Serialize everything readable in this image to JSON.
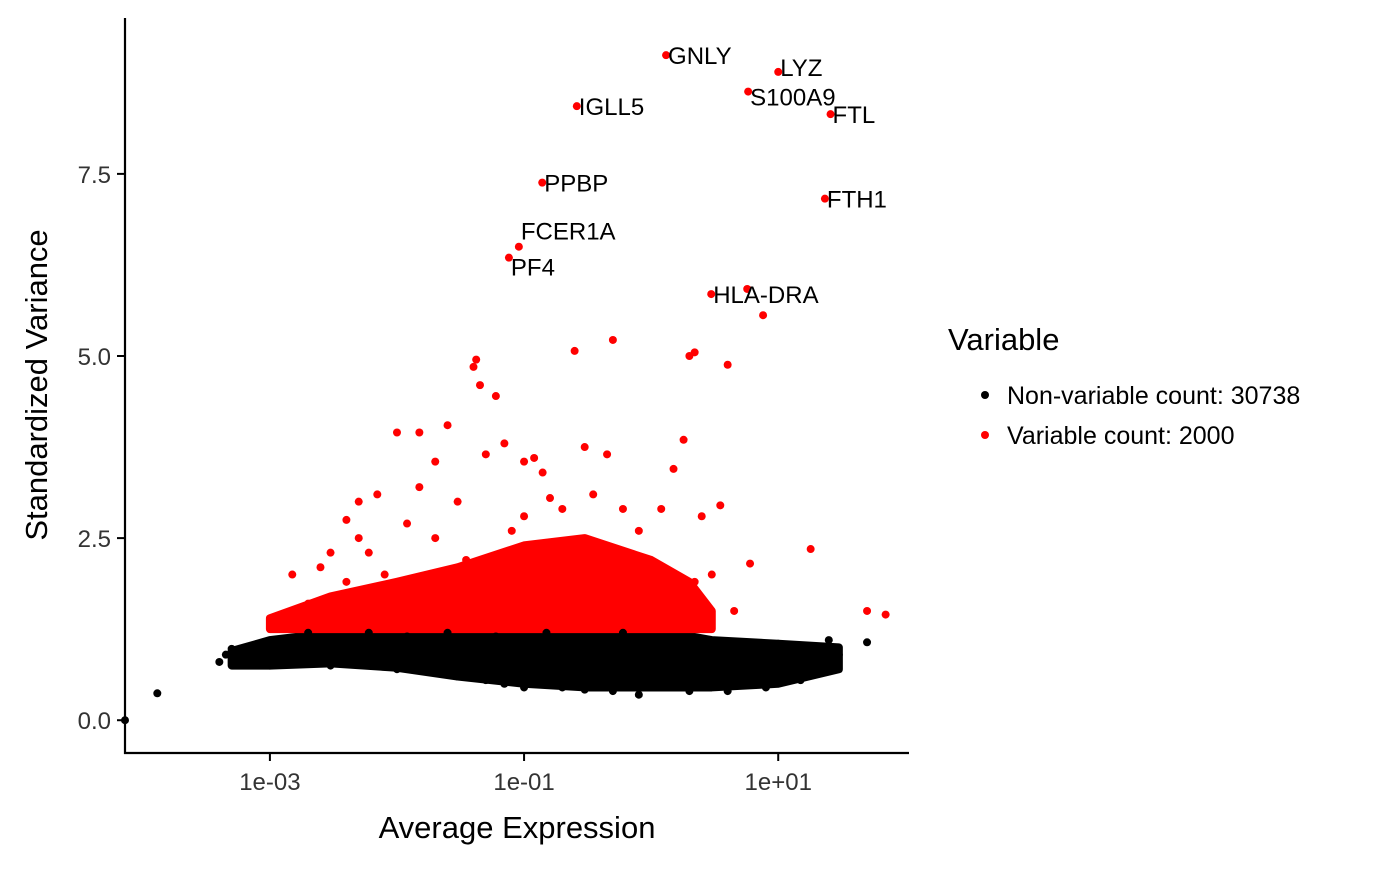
{
  "chart_data": {
    "type": "scatter",
    "xlabel": "Average Expression",
    "ylabel": "Standardized Variance",
    "x_scale": "log10",
    "xlim": [
      7.24e-05,
      105
    ],
    "ylim": [
      -0.45,
      9.64
    ],
    "x_ticks": [
      {
        "value": 0.001,
        "label": "1e-03"
      },
      {
        "value": 0.1,
        "label": "1e-01"
      },
      {
        "value": 10,
        "label": "1e+01"
      }
    ],
    "y_ticks": [
      {
        "value": 0,
        "label": "0.0"
      },
      {
        "value": 2.5,
        "label": "2.5"
      },
      {
        "value": 5,
        "label": "5.0"
      },
      {
        "value": 7.5,
        "label": "7.5"
      }
    ],
    "grid": false,
    "legend": {
      "title": "Variable",
      "placement": "right",
      "entries": [
        {
          "label": "Non-variable count: 30738",
          "color": "#000000"
        },
        {
          "label": "Variable count: 2000",
          "color": "#ff0000"
        }
      ]
    },
    "series": [
      {
        "name": "Non-variable count: 30738",
        "color": "#000000",
        "dense_region": {
          "x": [
            0.0005,
            0.001,
            0.003,
            0.01,
            0.03,
            0.1,
            0.3,
            1,
            3,
            10,
            30
          ],
          "lower": [
            0.75,
            0.75,
            0.78,
            0.72,
            0.6,
            0.5,
            0.45,
            0.45,
            0.45,
            0.5,
            0.7
          ],
          "upper": [
            0.95,
            1.1,
            1.2,
            1.25,
            1.25,
            1.25,
            1.25,
            1.25,
            1.1,
            1.05,
            1.0
          ]
        },
        "points": [
          [
            7.24e-05,
            0
          ],
          [
            0.00013,
            0.37
          ],
          [
            0.0004,
            0.8
          ],
          [
            0.00045,
            0.9
          ],
          [
            0.0005,
            0.98
          ],
          [
            0.0006,
            0.85
          ],
          [
            0.0008,
            0.82
          ],
          [
            0.001,
            0.9
          ],
          [
            0.001,
            0.75
          ],
          [
            0.0012,
            1.1
          ],
          [
            0.0015,
            0.95
          ],
          [
            0.002,
            0.85
          ],
          [
            0.002,
            1.2
          ],
          [
            0.003,
            0.9
          ],
          [
            0.003,
            0.75
          ],
          [
            0.004,
            1.0
          ],
          [
            0.005,
            0.85
          ],
          [
            0.006,
            1.2
          ],
          [
            0.008,
            0.8
          ],
          [
            0.01,
            0.95
          ],
          [
            0.01,
            0.7
          ],
          [
            0.012,
            1.15
          ],
          [
            0.015,
            0.85
          ],
          [
            0.02,
            0.7
          ],
          [
            0.02,
            1.0
          ],
          [
            0.025,
            1.2
          ],
          [
            0.03,
            0.6
          ],
          [
            0.03,
            0.85
          ],
          [
            0.04,
            1.05
          ],
          [
            0.05,
            0.55
          ],
          [
            0.05,
            0.8
          ],
          [
            0.06,
            1.15
          ],
          [
            0.07,
            0.5
          ],
          [
            0.08,
            0.7
          ],
          [
            0.1,
            0.95
          ],
          [
            0.1,
            0.45
          ],
          [
            0.12,
            0.6
          ],
          [
            0.15,
            1.2
          ],
          [
            0.15,
            0.8
          ],
          [
            0.2,
            0.45
          ],
          [
            0.2,
            1.0
          ],
          [
            0.25,
            0.65
          ],
          [
            0.3,
            0.42
          ],
          [
            0.3,
            1.1
          ],
          [
            0.4,
            0.55
          ],
          [
            0.5,
            0.85
          ],
          [
            0.5,
            0.4
          ],
          [
            0.6,
            1.2
          ],
          [
            0.7,
            0.5
          ],
          [
            0.8,
            0.35
          ],
          [
            1,
            0.7
          ],
          [
            1,
            1.0
          ],
          [
            1.3,
            0.45
          ],
          [
            1.5,
            0.9
          ],
          [
            2,
            0.4
          ],
          [
            2,
            0.75
          ],
          [
            2.5,
            1.1
          ],
          [
            3,
            0.5
          ],
          [
            3.5,
            0.85
          ],
          [
            4,
            0.4
          ],
          [
            5,
            0.65
          ],
          [
            5,
            1.0
          ],
          [
            6,
            0.5
          ],
          [
            7,
            0.8
          ],
          [
            8,
            0.45
          ],
          [
            10,
            1.05
          ],
          [
            10,
            0.6
          ],
          [
            12,
            0.75
          ],
          [
            15,
            0.55
          ],
          [
            15,
            1.0
          ],
          [
            20,
            0.85
          ],
          [
            25,
            1.1
          ],
          [
            30,
            0.9
          ],
          [
            50,
            1.07
          ]
        ]
      },
      {
        "name": "Variable count: 2000",
        "color": "#ff0000",
        "dense_region": {
          "x": [
            0.001,
            0.003,
            0.01,
            0.03,
            0.1,
            0.3,
            1,
            2,
            3
          ],
          "lower": [
            1.25,
            1.25,
            1.25,
            1.25,
            1.25,
            1.25,
            1.25,
            1.25,
            1.25
          ],
          "upper": [
            1.4,
            1.7,
            1.9,
            2.1,
            2.4,
            2.5,
            2.2,
            1.9,
            1.5
          ]
        },
        "points": [
          [
            0.0012,
            1.4
          ],
          [
            0.0015,
            2.0
          ],
          [
            0.002,
            1.6
          ],
          [
            0.0025,
            2.1
          ],
          [
            0.003,
            2.3
          ],
          [
            0.004,
            1.9
          ],
          [
            0.004,
            2.75
          ],
          [
            0.005,
            2.5
          ],
          [
            0.005,
            3.0
          ],
          [
            0.006,
            2.3
          ],
          [
            0.007,
            3.1
          ],
          [
            0.008,
            2.0
          ],
          [
            0.01,
            3.95
          ],
          [
            0.012,
            2.7
          ],
          [
            0.015,
            3.2
          ],
          [
            0.015,
            3.95
          ],
          [
            0.02,
            2.5
          ],
          [
            0.02,
            3.55
          ],
          [
            0.025,
            4.05
          ],
          [
            0.03,
            3.0
          ],
          [
            0.035,
            2.2
          ],
          [
            0.04,
            4.85
          ],
          [
            0.042,
            4.95
          ],
          [
            0.045,
            4.6
          ],
          [
            0.05,
            3.65
          ],
          [
            0.06,
            4.45
          ],
          [
            0.07,
            3.8
          ],
          [
            0.08,
            2.6
          ],
          [
            0.1,
            3.55
          ],
          [
            0.1,
            2.8
          ],
          [
            0.12,
            3.6
          ],
          [
            0.14,
            3.4
          ],
          [
            0.16,
            3.05
          ],
          [
            0.2,
            2.9
          ],
          [
            0.25,
            5.07
          ],
          [
            0.3,
            3.75
          ],
          [
            0.35,
            3.1
          ],
          [
            0.45,
            3.65
          ],
          [
            0.5,
            5.22
          ],
          [
            0.6,
            2.9
          ],
          [
            0.8,
            2.6
          ],
          [
            1.2,
            2.9
          ],
          [
            1.5,
            3.45
          ],
          [
            1.8,
            3.85
          ],
          [
            2,
            5.0
          ],
          [
            2.2,
            5.05
          ],
          [
            2.5,
            2.8
          ],
          [
            3,
            2.0
          ],
          [
            3.5,
            2.95
          ],
          [
            4,
            4.88
          ],
          [
            4.5,
            1.5
          ],
          [
            6,
            2.15
          ],
          [
            18,
            2.35
          ],
          [
            50,
            1.5
          ],
          [
            70,
            1.45
          ],
          [
            2.2,
            1.9
          ],
          [
            1.0,
            1.8
          ],
          [
            0.7,
            2.2
          ],
          [
            5.7,
            5.92
          ],
          [
            7.6,
            5.56
          ]
        ]
      }
    ],
    "labeled_points": [
      {
        "label": "GNLY",
        "x": 1.31,
        "y": 9.13
      },
      {
        "label": "LYZ",
        "x": 10,
        "y": 8.9
      },
      {
        "label": "S100A9",
        "x": 5.8,
        "y": 8.63
      },
      {
        "label": "FTL",
        "x": 25.8,
        "y": 8.32
      },
      {
        "label": "IGLL5",
        "x": 0.26,
        "y": 8.43
      },
      {
        "label": "PPBP",
        "x": 0.139,
        "y": 7.38
      },
      {
        "label": "FTH1",
        "x": 23.3,
        "y": 7.16
      },
      {
        "label": "FCER1A",
        "x": 0.091,
        "y": 6.5
      },
      {
        "label": "PF4",
        "x": 0.076,
        "y": 6.35
      },
      {
        "label": "HLA-DRA",
        "x": 2.97,
        "y": 5.85
      }
    ]
  }
}
